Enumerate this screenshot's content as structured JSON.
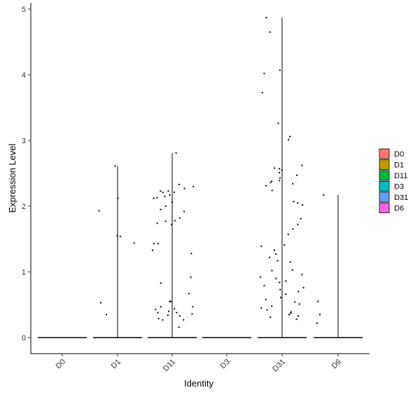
{
  "chart_data": {
    "type": "violin",
    "title": "",
    "xlabel": "Identity",
    "ylabel": "Expression Level",
    "ylim": [
      -0.25,
      5.12
    ],
    "yticks": [
      0,
      1,
      2,
      3,
      4,
      5
    ],
    "categories": [
      "D0",
      "D1",
      "D11",
      "D3",
      "D31",
      "D6"
    ],
    "grid": false,
    "legend": {
      "placement": "right",
      "entries": [
        {
          "label": "D0",
          "color": "#F8766D"
        },
        {
          "label": "D1",
          "color": "#B79F00"
        },
        {
          "label": "D11",
          "color": "#00BA38"
        },
        {
          "label": "D3",
          "color": "#00BFC4"
        },
        {
          "label": "D31",
          "color": "#619CFF"
        },
        {
          "label": "D6",
          "color": "#F564E3"
        }
      ]
    },
    "violin_max": [
      0,
      2.61,
      2.81,
      0,
      4.87,
      2.17
    ],
    "points": [
      {
        "group": "D0",
        "values": [
          0
        ]
      },
      {
        "group": "D1",
        "values": [
          1.55,
          1.54,
          0.53,
          0.35,
          2.61,
          2.12,
          1.93,
          1.44
        ]
      },
      {
        "group": "D11",
        "values": [
          2.81,
          2.23,
          2.21,
          2.27,
          2.33,
          2.12,
          2.06,
          1.95,
          1.82,
          1.74,
          1.78,
          1.72,
          1.43,
          1.33,
          1.28,
          0.47,
          0.43,
          0.55,
          0.36,
          0.29,
          0.4,
          0.44,
          0.33,
          0.27,
          0.38,
          2.3,
          2.17,
          2.23,
          2.21,
          2.15,
          2.13,
          1.92,
          2.0,
          1.77,
          1.43,
          0.92,
          0.83,
          0.67,
          0.55,
          0.47,
          0.38,
          0.34,
          0.27,
          0.16
        ]
      },
      {
        "group": "D3",
        "values": [
          0
        ]
      },
      {
        "group": "D31",
        "values": [
          4.87,
          4.65,
          4.07,
          4.02,
          3.73,
          3.26,
          3.06,
          3.01,
          2.62,
          2.58,
          2.57,
          2.55,
          2.51,
          2.47,
          2.43,
          2.39,
          2.38,
          2.36,
          2.34,
          2.31,
          2.24,
          2.07,
          2.05,
          2.02,
          1.81,
          1.72,
          1.65,
          1.57,
          1.41,
          1.39,
          1.33,
          1.27,
          1.22,
          1.17,
          1.15,
          1.03,
          1.02,
          0.96,
          0.92,
          0.9,
          0.86,
          0.84,
          0.79,
          0.76,
          0.73,
          0.7,
          0.66,
          0.61,
          0.58,
          0.54,
          0.51,
          0.48,
          0.45,
          0.42,
          0.39,
          0.37,
          0.35,
          0.33,
          0.31,
          0.28
        ]
      },
      {
        "group": "D6",
        "values": [
          2.17,
          0.55,
          0.35,
          0.22
        ]
      }
    ]
  }
}
